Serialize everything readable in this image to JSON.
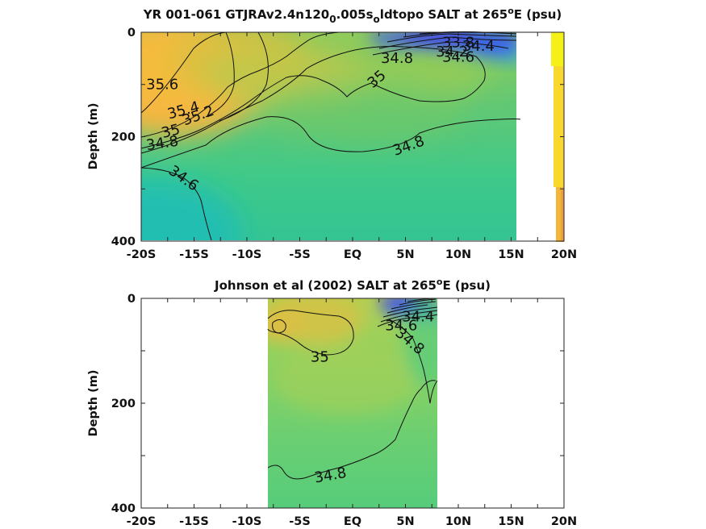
{
  "chart_data": [
    {
      "type": "heatmap",
      "title": {
        "pre": "YR 001-061 GTJRAv2.4n120",
        "sub1": "0",
        "mid": ".005s",
        "sub2": "o",
        "post": "ldtopo SALT at 265",
        "sup": "o",
        "end": "E (psu)"
      },
      "ylabel": "Depth (m)",
      "xlim": [
        -20,
        20
      ],
      "ylim": [
        0,
        400
      ],
      "x_ticks": [
        -20,
        -17.5,
        -15,
        -12.5,
        -10,
        -7.5,
        -5,
        -2.5,
        0,
        2.5,
        5,
        7.5,
        10,
        12.5,
        15,
        17.5,
        20
      ],
      "x_tick_labels": [
        "-20S",
        "-15S",
        "-10S",
        "-5S",
        "EQ",
        "5N",
        "10N",
        "15N",
        "20N"
      ],
      "x_tick_label_values": [
        -20,
        -15,
        -10,
        -5,
        0,
        5,
        10,
        15,
        20
      ],
      "y_tick_labels": [
        "0",
        "200",
        "400"
      ],
      "y_tick_label_values": [
        0,
        200,
        400
      ],
      "data_extent_x": [
        -20,
        15.8
      ],
      "contour_labels": [
        {
          "text": "35.6",
          "x": -18,
          "y": 100,
          "rot": 0
        },
        {
          "text": "35.4",
          "x": -16,
          "y": 150,
          "rot": -15
        },
        {
          "text": "35.2",
          "x": -14.6,
          "y": 160,
          "rot": -20
        },
        {
          "text": "35",
          "x": -17.2,
          "y": 190,
          "rot": -15
        },
        {
          "text": "34.8",
          "x": -18,
          "y": 213,
          "rot": -8
        },
        {
          "text": "34.6",
          "x": -16,
          "y": 280,
          "rot": 35
        },
        {
          "text": "35",
          "x": 2.3,
          "y": 90,
          "rot": -40
        },
        {
          "text": "34.8",
          "x": 4.2,
          "y": 50,
          "rot": 0
        },
        {
          "text": "34.8",
          "x": 5.3,
          "y": 218,
          "rot": -20
        },
        {
          "text": "33.8",
          "x": 10,
          "y": 20,
          "rot": 0
        },
        {
          "text": "34.2",
          "x": 9.4,
          "y": 38,
          "rot": 0
        },
        {
          "text": "34.4",
          "x": 11.9,
          "y": 27,
          "rot": 0
        },
        {
          "text": "34.6",
          "x": 10,
          "y": 48,
          "rot": 0
        }
      ]
    },
    {
      "type": "heatmap",
      "title": {
        "pre": "Johnson et al (2002) SALT at 265",
        "sup": "o",
        "end": "E (psu)"
      },
      "ylabel": "Depth (m)",
      "xlim": [
        -20,
        20
      ],
      "ylim": [
        0,
        400
      ],
      "x_ticks": [
        -20,
        -17.5,
        -15,
        -12.5,
        -10,
        -7.5,
        -5,
        -2.5,
        0,
        2.5,
        5,
        7.5,
        10,
        12.5,
        15,
        17.5,
        20
      ],
      "x_tick_labels": [
        "-20S",
        "-15S",
        "-10S",
        "-5S",
        "EQ",
        "5N",
        "10N",
        "15N",
        "20N"
      ],
      "x_tick_label_values": [
        -20,
        -15,
        -10,
        -5,
        0,
        5,
        10,
        15,
        20
      ],
      "y_tick_labels": [
        "0",
        "200",
        "400"
      ],
      "y_tick_label_values": [
        0,
        200,
        400
      ],
      "data_extent_x": [
        -8,
        8
      ],
      "contour_labels": [
        {
          "text": "35",
          "x": -3.1,
          "y": 112,
          "rot": 0
        },
        {
          "text": "34.4",
          "x": 6.2,
          "y": 35,
          "rot": 0
        },
        {
          "text": "34.6",
          "x": 4.6,
          "y": 52,
          "rot": 0
        },
        {
          "text": "34.8",
          "x": 5.4,
          "y": 82,
          "rot": 40
        },
        {
          "text": "34.8",
          "x": -2.1,
          "y": 338,
          "rot": -10
        }
      ]
    }
  ]
}
